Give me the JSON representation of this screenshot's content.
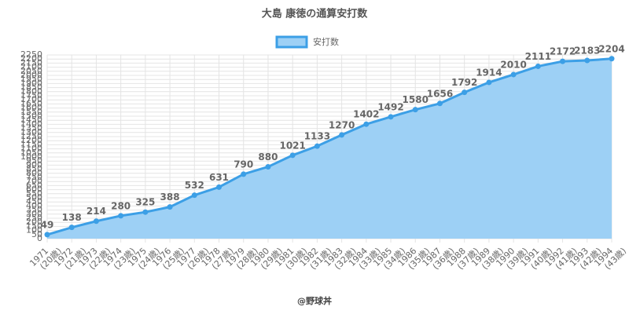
{
  "chart_data": {
    "type": "area",
    "title": "大島 康徳の通算安打数",
    "footer": "@野球丼",
    "categories": [
      [
        "1971",
        "(20歳)"
      ],
      [
        "1972",
        "(21歳)"
      ],
      [
        "1973",
        "(22歳)"
      ],
      [
        "1974",
        "(23歳)"
      ],
      [
        "1975",
        "(24歳)"
      ],
      [
        "1976",
        "(25歳)"
      ],
      [
        "1977",
        "(26歳)"
      ],
      [
        "1978",
        "(27歳)"
      ],
      [
        "1979",
        "(28歳)"
      ],
      [
        "1980",
        "(29歳)"
      ],
      [
        "1981",
        "(30歳)"
      ],
      [
        "1982",
        "(31歳)"
      ],
      [
        "1983",
        "(32歳)"
      ],
      [
        "1984",
        "(33歳)"
      ],
      [
        "1985",
        "(34歳)"
      ],
      [
        "1986",
        "(35歳)"
      ],
      [
        "1987",
        "(36歳)"
      ],
      [
        "1988",
        "(37歳)"
      ],
      [
        "1989",
        "(38歳)"
      ],
      [
        "1990",
        "(39歳)"
      ],
      [
        "1991",
        "(40歳)"
      ],
      [
        "1992",
        "(41歳)"
      ],
      [
        "1993",
        "(42歳)"
      ],
      [
        "1994",
        "(43歳)"
      ]
    ],
    "series": [
      {
        "name": "安打数",
        "color": "#3c9fe6",
        "fill": "#9dd0f5",
        "values": [
          49,
          138,
          214,
          280,
          325,
          388,
          532,
          631,
          790,
          880,
          1021,
          1133,
          1270,
          1402,
          1492,
          1580,
          1656,
          1792,
          1914,
          2010,
          2111,
          2172,
          2183,
          2204
        ]
      }
    ],
    "ylim": [
      0,
      2250
    ],
    "yticks": [
      0,
      50,
      100,
      150,
      200,
      250,
      300,
      350,
      400,
      450,
      500,
      550,
      600,
      650,
      700,
      750,
      800,
      850,
      900,
      950,
      1000,
      1050,
      1100,
      1150,
      1200,
      1250,
      1300,
      1350,
      1400,
      1450,
      1500,
      1550,
      1600,
      1650,
      1700,
      1750,
      1800,
      1850,
      1900,
      1950,
      2000,
      2050,
      2100,
      2150,
      2200,
      2250
    ],
    "grid": true,
    "legend": "top"
  }
}
